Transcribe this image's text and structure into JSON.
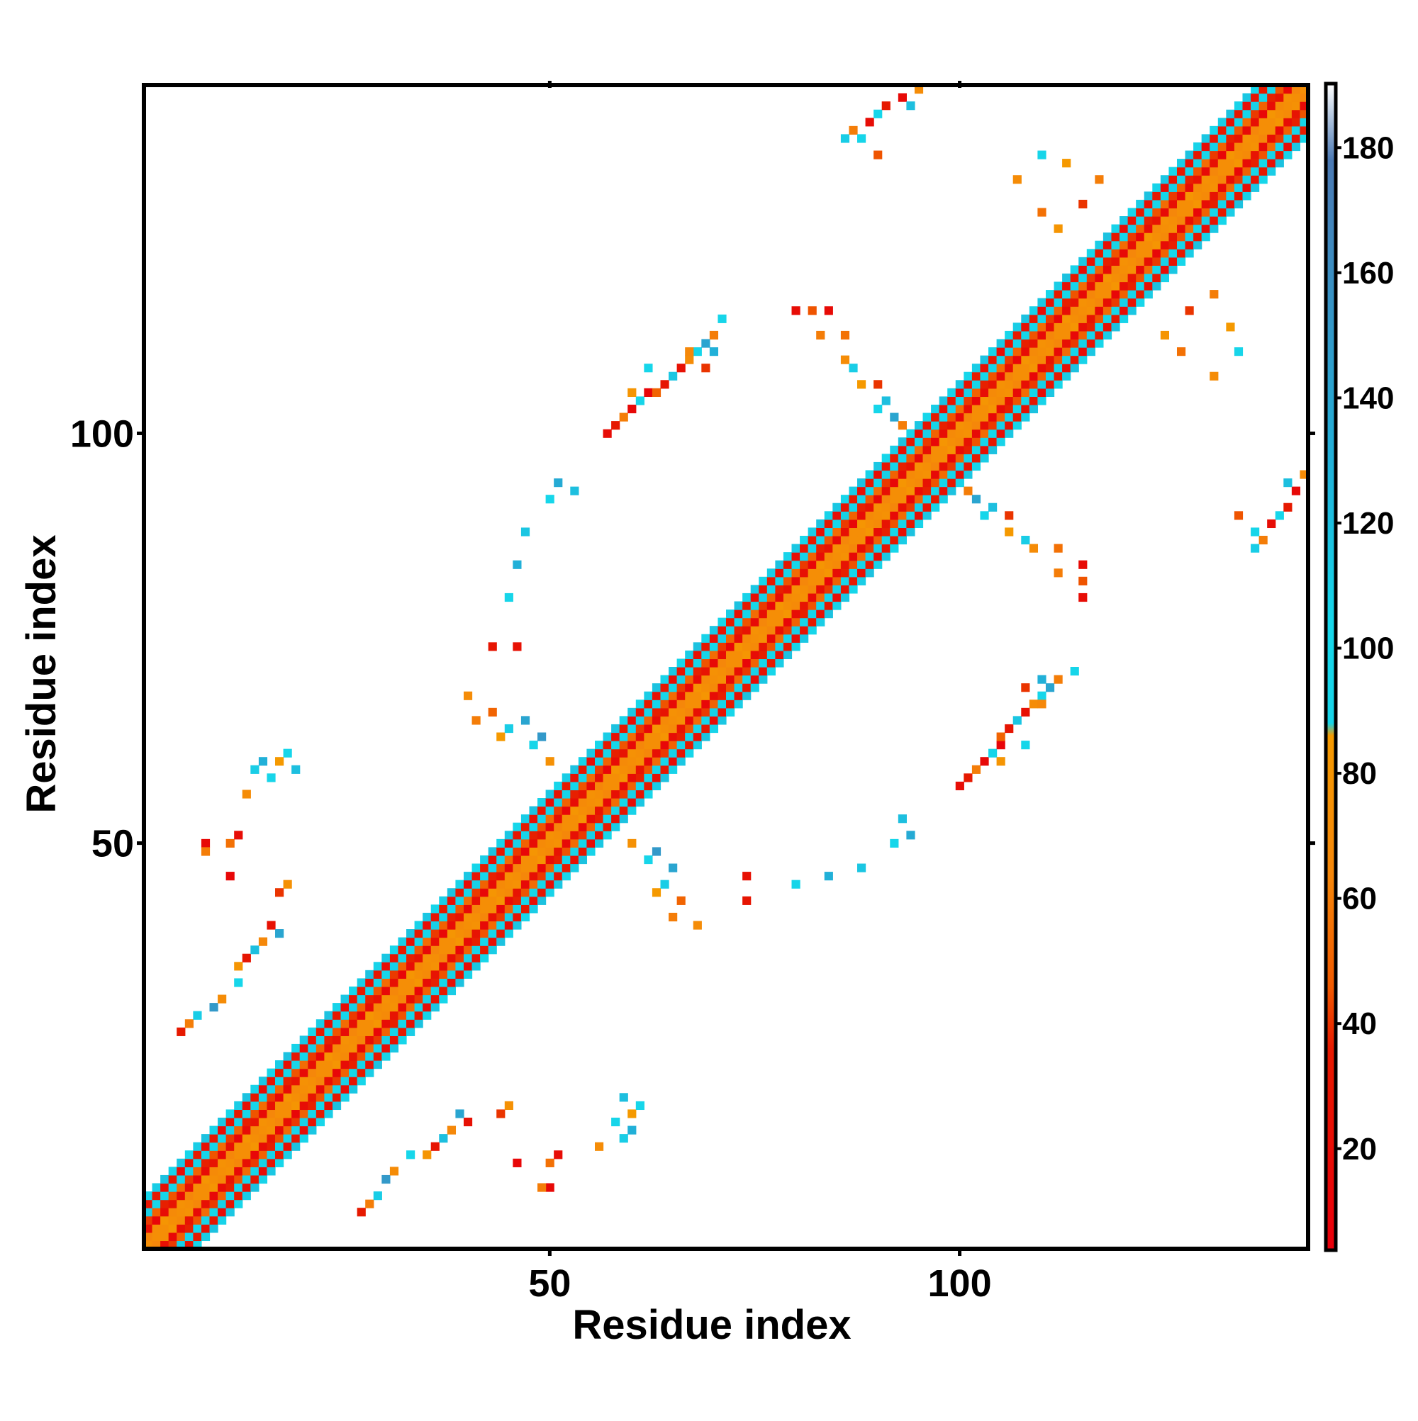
{
  "chart_data": {
    "type": "heatmap",
    "title": "",
    "xlabel": "Residue index",
    "ylabel": "Residue index",
    "x_ticks": [
      50,
      100
    ],
    "y_ticks": [
      50,
      100
    ],
    "xlim": [
      0.5,
      142.5
    ],
    "ylim": [
      0.5,
      142.5
    ],
    "n_residues": 142,
    "grid": false,
    "legend": "colorbar-right",
    "colorbar": {
      "ticks": [
        20,
        40,
        60,
        80,
        100,
        120,
        140,
        160,
        180
      ],
      "range": [
        4,
        190
      ],
      "stops": [
        {
          "v": 4,
          "color": "#e8000b"
        },
        {
          "v": 36,
          "color": "#e61a00"
        },
        {
          "v": 46,
          "color": "#f05a00"
        },
        {
          "v": 64,
          "color": "#f5870a"
        },
        {
          "v": 86,
          "color": "#f59a00"
        },
        {
          "v": 88,
          "color": "#17d4e8"
        },
        {
          "v": 104,
          "color": "#16d6ea"
        },
        {
          "v": 130,
          "color": "#21b0d8"
        },
        {
          "v": 178,
          "color": "#4b79b3"
        },
        {
          "v": 190,
          "color": "#ffffff"
        }
      ]
    },
    "diagonal_band": {
      "offsets": [
        1,
        2,
        3,
        4,
        5,
        6
      ],
      "offset_values": [
        72,
        20,
        45,
        100,
        28,
        110
      ]
    },
    "contacts": [
      {
        "i": 5,
        "j": 27,
        "v": 35
      },
      {
        "i": 6,
        "j": 28,
        "v": 60
      },
      {
        "i": 7,
        "j": 29,
        "v": 110
      },
      {
        "i": 9,
        "j": 30,
        "v": 150
      },
      {
        "i": 10,
        "j": 31,
        "v": 70
      },
      {
        "i": 12,
        "j": 33,
        "v": 100
      },
      {
        "i": 12,
        "j": 35,
        "v": 80
      },
      {
        "i": 13,
        "j": 36,
        "v": 30
      },
      {
        "i": 14,
        "j": 37,
        "v": 120
      },
      {
        "i": 15,
        "j": 38,
        "v": 65
      },
      {
        "i": 16,
        "j": 40,
        "v": 25
      },
      {
        "i": 17,
        "j": 39,
        "v": 140
      },
      {
        "i": 17,
        "j": 44,
        "v": 40
      },
      {
        "i": 18,
        "j": 45,
        "v": 75
      },
      {
        "i": 8,
        "j": 50,
        "v": 15
      },
      {
        "i": 8,
        "j": 49,
        "v": 60
      },
      {
        "i": 11,
        "j": 50,
        "v": 55
      },
      {
        "i": 11,
        "j": 46,
        "v": 12
      },
      {
        "i": 12,
        "j": 51,
        "v": 20
      },
      {
        "i": 13,
        "j": 56,
        "v": 70
      },
      {
        "i": 14,
        "j": 59,
        "v": 110
      },
      {
        "i": 15,
        "j": 60,
        "v": 130
      },
      {
        "i": 16,
        "j": 58,
        "v": 95
      },
      {
        "i": 17,
        "j": 60,
        "v": 85
      },
      {
        "i": 18,
        "j": 61,
        "v": 100
      },
      {
        "i": 19,
        "j": 59,
        "v": 120
      },
      {
        "i": 43,
        "j": 74,
        "v": 30
      },
      {
        "i": 46,
        "j": 74,
        "v": 25
      },
      {
        "i": 45,
        "j": 80,
        "v": 105
      },
      {
        "i": 46,
        "j": 84,
        "v": 130
      },
      {
        "i": 47,
        "j": 88,
        "v": 115
      },
      {
        "i": 50,
        "j": 92,
        "v": 100
      },
      {
        "i": 51,
        "j": 94,
        "v": 135
      },
      {
        "i": 53,
        "j": 93,
        "v": 120
      },
      {
        "i": 40,
        "j": 68,
        "v": 70
      },
      {
        "i": 41,
        "j": 65,
        "v": 60
      },
      {
        "i": 43,
        "j": 66,
        "v": 50
      },
      {
        "i": 44,
        "j": 63,
        "v": 85
      },
      {
        "i": 45,
        "j": 64,
        "v": 110
      },
      {
        "i": 47,
        "j": 65,
        "v": 140
      },
      {
        "i": 48,
        "j": 62,
        "v": 95
      },
      {
        "i": 49,
        "j": 63,
        "v": 150
      },
      {
        "i": 50,
        "j": 60,
        "v": 75
      },
      {
        "i": 57,
        "j": 100,
        "v": 20
      },
      {
        "i": 58,
        "j": 101,
        "v": 35
      },
      {
        "i": 59,
        "j": 102,
        "v": 60
      },
      {
        "i": 60,
        "j": 103,
        "v": 15
      },
      {
        "i": 61,
        "j": 104,
        "v": 95
      },
      {
        "i": 62,
        "j": 105,
        "v": 10
      },
      {
        "i": 63,
        "j": 105,
        "v": 50
      },
      {
        "i": 64,
        "j": 106,
        "v": 30
      },
      {
        "i": 65,
        "j": 107,
        "v": 115
      },
      {
        "i": 66,
        "j": 108,
        "v": 25
      },
      {
        "i": 67,
        "j": 109,
        "v": 70
      },
      {
        "i": 68,
        "j": 110,
        "v": 100
      },
      {
        "i": 69,
        "j": 111,
        "v": 140
      },
      {
        "i": 70,
        "j": 112,
        "v": 60
      },
      {
        "i": 71,
        "j": 114,
        "v": 105
      },
      {
        "i": 60,
        "j": 105,
        "v": 80
      },
      {
        "i": 62,
        "j": 108,
        "v": 100
      },
      {
        "i": 67,
        "j": 110,
        "v": 65
      },
      {
        "i": 69,
        "j": 108,
        "v": 40
      },
      {
        "i": 70,
        "j": 110,
        "v": 130
      },
      {
        "i": 80,
        "j": 115,
        "v": 20
      },
      {
        "i": 82,
        "j": 115,
        "v": 45
      },
      {
        "i": 84,
        "j": 115,
        "v": 18
      },
      {
        "i": 83,
        "j": 112,
        "v": 60
      },
      {
        "i": 86,
        "j": 112,
        "v": 55
      },
      {
        "i": 86,
        "j": 109,
        "v": 70
      },
      {
        "i": 87,
        "j": 108,
        "v": 110
      },
      {
        "i": 88,
        "j": 106,
        "v": 85
      },
      {
        "i": 90,
        "j": 106,
        "v": 40
      },
      {
        "i": 90,
        "j": 103,
        "v": 100
      },
      {
        "i": 91,
        "j": 104,
        "v": 120
      },
      {
        "i": 92,
        "j": 102,
        "v": 140
      },
      {
        "i": 93,
        "j": 101,
        "v": 60
      },
      {
        "i": 86,
        "j": 136,
        "v": 110
      },
      {
        "i": 87,
        "j": 137,
        "v": 60
      },
      {
        "i": 89,
        "j": 138,
        "v": 20
      },
      {
        "i": 90,
        "j": 139,
        "v": 100
      },
      {
        "i": 91,
        "j": 140,
        "v": 35
      },
      {
        "i": 93,
        "j": 141,
        "v": 15
      },
      {
        "i": 94,
        "j": 140,
        "v": 120
      },
      {
        "i": 95,
        "j": 142,
        "v": 70
      },
      {
        "i": 88,
        "j": 136,
        "v": 105
      },
      {
        "i": 90,
        "j": 134,
        "v": 45
      },
      {
        "i": 107,
        "j": 131,
        "v": 70
      },
      {
        "i": 110,
        "j": 134,
        "v": 95
      },
      {
        "i": 113,
        "j": 133,
        "v": 85
      },
      {
        "i": 117,
        "j": 131,
        "v": 60
      },
      {
        "i": 110,
        "j": 127,
        "v": 55
      },
      {
        "i": 112,
        "j": 125,
        "v": 80
      },
      {
        "i": 115,
        "j": 128,
        "v": 40
      }
    ]
  }
}
